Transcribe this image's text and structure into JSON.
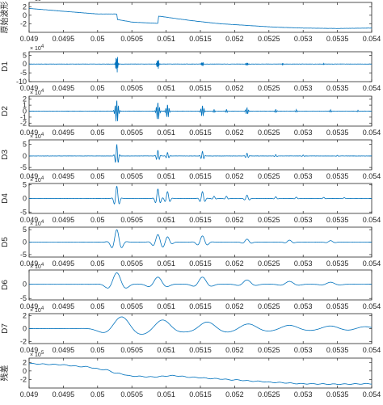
{
  "chart_data": {
    "type": "line",
    "color": "#0072BD",
    "x_ticks": [
      "0.049",
      "0.0495",
      "0.05",
      "0.0505",
      "0.051",
      "0.0515",
      "0.052",
      "0.0525",
      "0.053",
      "0.0535",
      "0.054"
    ],
    "xlim": [
      0.049,
      0.054
    ],
    "panels": [
      {
        "ylabel": "原始波形",
        "exponent": "× 10^5",
        "ylim": [
          -4,
          3
        ],
        "yticks": [
          {
            "v": 2,
            "label": "2"
          },
          {
            "v": 0,
            "label": "0"
          },
          {
            "v": -2,
            "label": "-2"
          }
        ],
        "kind": "step",
        "steps": [
          [
            0.049,
            1.6
          ],
          [
            0.0493,
            1.2
          ],
          [
            0.0496,
            0.8
          ],
          [
            0.05,
            0.3
          ],
          [
            0.05028,
            0.3
          ],
          [
            0.05029,
            -1.0
          ],
          [
            0.0505,
            -1.6
          ],
          [
            0.05088,
            -1.9
          ],
          [
            0.05089,
            -0.2
          ],
          [
            0.0512,
            -0.9
          ],
          [
            0.0515,
            -1.5
          ],
          [
            0.0518,
            -2.0
          ],
          [
            0.0522,
            -2.4
          ],
          [
            0.0526,
            -2.8
          ],
          [
            0.053,
            -3.0
          ],
          [
            0.0535,
            -3.1
          ],
          [
            0.054,
            -3.0
          ]
        ]
      },
      {
        "ylabel": "D1",
        "exponent": "× 10^4",
        "ylim": [
          -10,
          7
        ],
        "yticks": [
          {
            "v": 5,
            "label": "5"
          },
          {
            "v": 0,
            "label": "0"
          },
          {
            "v": -5,
            "label": "-5"
          },
          {
            "v": -10,
            "label": "-10"
          }
        ],
        "kind": "bursts",
        "noise": 0.15,
        "bursts": [
          [
            0.05028,
            6.0,
            1.2e-05,
            90000
          ],
          [
            0.05088,
            3.5,
            1.2e-05,
            90000
          ],
          [
            0.05153,
            1.5,
            1.2e-05,
            90000
          ],
          [
            0.05218,
            0.8,
            1.2e-05,
            90000
          ],
          [
            0.0527,
            0.4,
            1e-05,
            90000
          ],
          [
            0.0533,
            0.3,
            1e-05,
            90000
          ]
        ]
      },
      {
        "ylabel": "D2",
        "exponent": "× 10^4",
        "ylim": [
          -2.5,
          2.5
        ],
        "yticks": [
          {
            "v": 2,
            "label": "2"
          },
          {
            "v": 1,
            "label": "1"
          },
          {
            "v": 0,
            "label": "0"
          },
          {
            "v": -1,
            "label": "-1"
          },
          {
            "v": -2,
            "label": "-2"
          }
        ],
        "kind": "bursts",
        "noise": 0.05,
        "bursts": [
          [
            0.05028,
            2.0,
            2e-05,
            42000
          ],
          [
            0.05088,
            1.6,
            1.8e-05,
            42000
          ],
          [
            0.05102,
            1.2,
            1.8e-05,
            42000
          ],
          [
            0.05153,
            1.0,
            1.8e-05,
            42000
          ],
          [
            0.0517,
            0.3,
            1.2e-05,
            42000
          ],
          [
            0.05188,
            0.3,
            1.2e-05,
            42000
          ],
          [
            0.05218,
            0.6,
            1.6e-05,
            42000
          ],
          [
            0.0526,
            0.3,
            1.2e-05,
            42000
          ],
          [
            0.0529,
            0.25,
            1.2e-05,
            42000
          ],
          [
            0.0534,
            0.2,
            1.2e-05,
            42000
          ],
          [
            0.0538,
            0.15,
            1e-05,
            42000
          ]
        ]
      },
      {
        "ylabel": "D3",
        "exponent": "× 10^4",
        "ylim": [
          -6,
          7
        ],
        "yticks": [
          {
            "v": 5,
            "label": "5"
          },
          {
            "v": 0,
            "label": "0"
          },
          {
            "v": -5,
            "label": "-5"
          }
        ],
        "kind": "bursts",
        "noise": 0.1,
        "bursts": [
          [
            0.05028,
            5.0,
            2e-05,
            22000
          ],
          [
            0.05088,
            2.5,
            2e-05,
            22000
          ],
          [
            0.05102,
            1.5,
            1.8e-05,
            22000
          ],
          [
            0.05153,
            2.0,
            2e-05,
            22000
          ],
          [
            0.05218,
            1.2,
            2e-05,
            22000
          ],
          [
            0.0526,
            0.6,
            1.5e-05,
            22000
          ],
          [
            0.053,
            0.4,
            1.5e-05,
            22000
          ],
          [
            0.0535,
            0.3,
            1.5e-05,
            22000
          ]
        ]
      },
      {
        "ylabel": "D4",
        "exponent": "× 10^4",
        "ylim": [
          -5.5,
          5.5
        ],
        "yticks": [
          {
            "v": 5,
            "label": "5"
          },
          {
            "v": 0,
            "label": "0"
          },
          {
            "v": -5,
            "label": "-5"
          }
        ],
        "kind": "bursts",
        "noise": 0.05,
        "bursts": [
          [
            0.05028,
            4.5,
            3e-05,
            12000
          ],
          [
            0.05088,
            3.5,
            3e-05,
            12000
          ],
          [
            0.05102,
            2.5,
            3e-05,
            12000
          ],
          [
            0.05153,
            2.5,
            3e-05,
            12000
          ],
          [
            0.0517,
            0.8,
            2e-05,
            12000
          ],
          [
            0.05188,
            0.8,
            2e-05,
            12000
          ],
          [
            0.05218,
            1.2,
            3e-05,
            12000
          ],
          [
            0.0526,
            0.6,
            2e-05,
            12000
          ],
          [
            0.0529,
            0.5,
            2e-05,
            12000
          ],
          [
            0.0533,
            0.4,
            2e-05,
            12000
          ],
          [
            0.0536,
            0.3,
            2e-05,
            12000
          ]
        ]
      },
      {
        "ylabel": "D5",
        "exponent": "× 10^4",
        "ylim": [
          -6,
          6
        ],
        "yticks": [
          {
            "v": 5,
            "label": "5"
          },
          {
            "v": 0,
            "label": "0"
          },
          {
            "v": -5,
            "label": "-5"
          }
        ],
        "kind": "bursts",
        "noise": 0.05,
        "bursts": [
          [
            0.05028,
            5.0,
            6e-05,
            6000
          ],
          [
            0.05088,
            3.0,
            6e-05,
            6000
          ],
          [
            0.05102,
            2.0,
            5e-05,
            6000
          ],
          [
            0.05153,
            2.5,
            6e-05,
            6000
          ],
          [
            0.05218,
            1.2,
            5e-05,
            6000
          ],
          [
            0.0528,
            0.8,
            5e-05,
            6000
          ],
          [
            0.0534,
            0.6,
            5e-05,
            6000
          ]
        ]
      },
      {
        "ylabel": "D6",
        "exponent": "× 10^4",
        "ylim": [
          -5.5,
          5
        ],
        "yticks": [
          {
            "v": 0,
            "label": "0"
          },
          {
            "v": -5,
            "label": "-5"
          }
        ],
        "kind": "bursts",
        "noise": 0.05,
        "bursts": [
          [
            0.05028,
            4.0,
            0.0001,
            3000
          ],
          [
            0.05088,
            2.5,
            0.0001,
            3000
          ],
          [
            0.05153,
            2.5,
            9e-05,
            3000
          ],
          [
            0.05218,
            1.5,
            9e-05,
            3000
          ],
          [
            0.0528,
            1.0,
            0.0001,
            3000
          ],
          [
            0.0534,
            0.7,
            0.0001,
            3000
          ]
        ]
      },
      {
        "ylabel": "D7",
        "exponent": "× 10^4",
        "ylim": [
          -2.3,
          2.3
        ],
        "yticks": [
          {
            "v": 2,
            "label": "2"
          },
          {
            "v": 0,
            "label": "0"
          },
          {
            "v": -2,
            "label": "-2"
          }
        ],
        "kind": "bursts",
        "noise": 0.02,
        "bursts": [
          [
            0.05035,
            1.8,
            0.0002,
            1500
          ],
          [
            0.05095,
            1.3,
            0.00018,
            1500
          ],
          [
            0.0516,
            1.0,
            0.0002,
            1500
          ],
          [
            0.0522,
            0.7,
            0.0002,
            1500
          ],
          [
            0.0528,
            0.5,
            0.0002,
            1500
          ],
          [
            0.0534,
            0.4,
            0.0002,
            1500
          ],
          [
            0.0539,
            0.3,
            0.0002,
            1500
          ]
        ]
      },
      {
        "ylabel": "残差",
        "exponent": "× 10^5",
        "ylim": [
          -4,
          3
        ],
        "yticks": [
          {
            "v": 2,
            "label": "2"
          },
          {
            "v": 0,
            "label": "0"
          },
          {
            "v": -2,
            "label": "-2"
          }
        ],
        "kind": "smooth",
        "points": [
          [
            0.049,
            1.7
          ],
          [
            0.0494,
            1.5
          ],
          [
            0.0498,
            1.0
          ],
          [
            0.0501,
            0.3
          ],
          [
            0.0503,
            -0.6
          ],
          [
            0.0505,
            -1.2
          ],
          [
            0.0508,
            -1.4
          ],
          [
            0.0511,
            -1.1
          ],
          [
            0.0514,
            -1.5
          ],
          [
            0.0517,
            -1.8
          ],
          [
            0.052,
            -2.1
          ],
          [
            0.0523,
            -2.4
          ],
          [
            0.0526,
            -2.7
          ],
          [
            0.053,
            -3.0
          ],
          [
            0.0535,
            -3.1
          ],
          [
            0.054,
            -3.0
          ]
        ]
      }
    ]
  }
}
